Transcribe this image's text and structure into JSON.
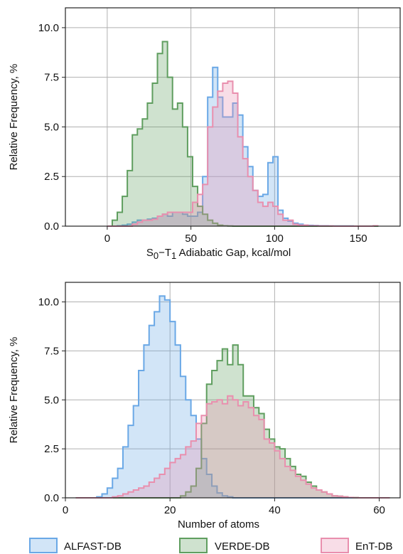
{
  "colors": {
    "ALFAST-DB": "#6aa8e6",
    "VERDE-DB": "#5f9e5f",
    "EnT-DB": "#e98fae"
  },
  "legend": [
    "ALFAST-DB",
    "VERDE-DB",
    "EnT-DB"
  ],
  "chart_data": [
    {
      "type": "area",
      "xlabel_main": "S",
      "xlabel_sub0": "0",
      "xlabel_mid": "−T",
      "xlabel_sub1": "1",
      "xlabel_rest": " Adiabatic Gap, kcal/mol",
      "ylabel": "Relative Frequency, %",
      "xlim": [
        -25,
        175
      ],
      "ylim": [
        0,
        11
      ],
      "xticks": [
        0,
        50,
        100,
        150
      ],
      "yticks": [
        0.0,
        2.5,
        5.0,
        7.5,
        10.0
      ],
      "ytick_labels": [
        "0.0",
        "2.5",
        "5.0",
        "7.5",
        "10.0"
      ],
      "grid": true,
      "bin_edges": [
        0,
        3,
        6,
        9,
        12,
        15,
        18,
        21,
        24,
        27,
        30,
        33,
        36,
        39,
        42,
        45,
        48,
        51,
        54,
        57,
        60,
        63,
        66,
        69,
        72,
        75,
        78,
        81,
        84,
        87,
        90,
        93,
        96,
        99,
        102,
        105,
        108,
        111,
        114,
        117,
        120,
        123,
        126,
        129,
        132,
        135,
        138,
        141,
        144,
        147,
        150,
        153,
        156,
        159,
        162,
        165
      ],
      "series": [
        {
          "name": "ALFAST-DB",
          "values": [
            0,
            0,
            0.02,
            0.05,
            0.1,
            0.2,
            0.3,
            0.3,
            0.35,
            0.4,
            0.5,
            0.6,
            0.5,
            0.7,
            0.7,
            0.6,
            0.5,
            0.5,
            0.7,
            2.5,
            6.5,
            8.0,
            6.5,
            5.5,
            5.5,
            6.2,
            5.6,
            4.0,
            3.0,
            1.8,
            1.5,
            1.6,
            3.2,
            3.5,
            0.8,
            0.4,
            0.25,
            0.15,
            0.1,
            0.05,
            0.04,
            0.03,
            0.02,
            0.02,
            0.01,
            0.01,
            0.01,
            0.01,
            0.01,
            0,
            0,
            0,
            0,
            0.02
          ]
        },
        {
          "name": "VERDE-DB",
          "values": [
            0,
            0.3,
            0.7,
            1.5,
            2.8,
            4.6,
            4.9,
            5.4,
            6.2,
            7.2,
            8.7,
            9.3,
            7.5,
            5.9,
            6.2,
            5.0,
            3.5,
            2.0,
            1.0,
            0.6,
            0.3,
            0.15,
            0.05,
            0.02,
            0.01,
            0,
            0,
            0,
            0,
            0,
            0,
            0,
            0,
            0,
            0,
            0,
            0,
            0,
            0,
            0,
            0,
            0,
            0,
            0,
            0,
            0,
            0,
            0,
            0,
            0,
            0,
            0,
            0,
            0
          ]
        },
        {
          "name": "EnT-DB",
          "values": [
            0,
            0,
            0,
            0,
            0,
            0.1,
            0.2,
            0.3,
            0.3,
            0.35,
            0.5,
            0.6,
            0.7,
            0.7,
            0.7,
            0.7,
            0.7,
            1.2,
            1.6,
            2.1,
            5.0,
            6.0,
            6.8,
            7.2,
            7.3,
            6.7,
            4.5,
            3.4,
            2.5,
            1.8,
            1.2,
            1.0,
            1.2,
            1.0,
            0.6,
            0.3,
            0.3,
            0.1,
            0.05,
            0.05,
            0.02,
            0.02,
            0.01,
            0.01,
            0.01,
            0,
            0,
            0,
            0,
            0,
            0,
            0,
            0,
            0.02
          ]
        }
      ]
    },
    {
      "type": "area",
      "xlabel": "Number of atoms",
      "ylabel": "Relative Frequency, %",
      "xlim": [
        0,
        64
      ],
      "ylim": [
        0,
        11
      ],
      "xticks": [
        0,
        20,
        40,
        60
      ],
      "yticks": [
        0.0,
        2.5,
        5.0,
        7.5,
        10.0
      ],
      "ytick_labels": [
        "0.0",
        "2.5",
        "5.0",
        "7.5",
        "10.0"
      ],
      "grid": true,
      "bin_edges": [
        2,
        3,
        4,
        5,
        6,
        7,
        8,
        9,
        10,
        11,
        12,
        13,
        14,
        15,
        16,
        17,
        18,
        19,
        20,
        21,
        22,
        23,
        24,
        25,
        26,
        27,
        28,
        29,
        30,
        31,
        32,
        33,
        34,
        35,
        36,
        37,
        38,
        39,
        40,
        41,
        42,
        43,
        44,
        45,
        46,
        47,
        48,
        49,
        50,
        51,
        52,
        53,
        54,
        55,
        56,
        57,
        58,
        59,
        60,
        61,
        62
      ],
      "series": [
        {
          "name": "ALFAST-DB",
          "values": [
            0,
            0,
            0,
            0,
            0.05,
            0.2,
            0.5,
            1.0,
            1.5,
            2.6,
            3.7,
            4.7,
            6.5,
            7.8,
            8.8,
            9.5,
            10.3,
            10.1,
            9.0,
            7.8,
            6.2,
            5.0,
            4.2,
            3.0,
            2.0,
            1.2,
            0.6,
            0.25,
            0.1,
            0.05,
            0,
            0,
            0,
            0,
            0,
            0,
            0,
            0,
            0,
            0,
            0,
            0,
            0,
            0,
            0,
            0,
            0,
            0,
            0,
            0,
            0,
            0,
            0,
            0,
            0,
            0,
            0,
            0,
            0,
            0
          ]
        },
        {
          "name": "VERDE-DB",
          "values": [
            0,
            0,
            0,
            0,
            0,
            0,
            0,
            0,
            0,
            0,
            0,
            0,
            0,
            0,
            0,
            0,
            0,
            0,
            0,
            0,
            0.1,
            0.3,
            0.6,
            1.5,
            3.8,
            5.8,
            6.5,
            7.0,
            7.6,
            6.8,
            7.8,
            6.8,
            5.2,
            5.2,
            4.6,
            4.3,
            3.5,
            3.0,
            2.6,
            2.5,
            2.0,
            1.6,
            1.2,
            1.1,
            0.8,
            0.6,
            0.4,
            0.3,
            0.2,
            0.1,
            0.08,
            0.05,
            0.02,
            0.01,
            0,
            0,
            0,
            0,
            0,
            0
          ]
        },
        {
          "name": "EnT-DB",
          "values": [
            0,
            0,
            0,
            0,
            0,
            0,
            0,
            0.05,
            0.1,
            0.2,
            0.3,
            0.4,
            0.5,
            0.6,
            0.8,
            1.0,
            1.2,
            1.5,
            1.8,
            2.0,
            2.2,
            2.6,
            2.9,
            3.8,
            4.2,
            4.8,
            4.9,
            5.0,
            4.8,
            5.2,
            5.0,
            4.7,
            4.9,
            4.6,
            4.2,
            4.0,
            3.0,
            2.8,
            2.4,
            2.0,
            1.6,
            1.4,
            1.1,
            0.9,
            0.7,
            0.5,
            0.4,
            0.3,
            0.2,
            0.1,
            0.08,
            0.05,
            0.02,
            0.01,
            0,
            0,
            0,
            0,
            0,
            0
          ]
        }
      ]
    }
  ]
}
